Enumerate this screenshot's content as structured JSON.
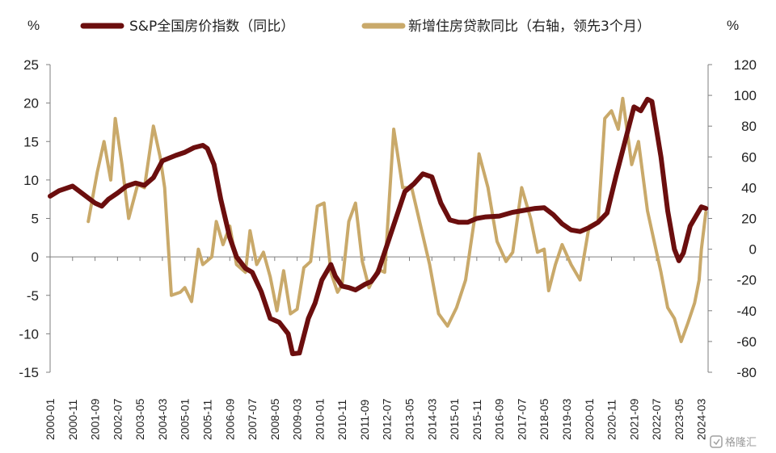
{
  "colors": {
    "series_1": "#6b0e0e",
    "series_2": "#c9a96a",
    "axis": "#7f7f7f"
  },
  "watermark": {
    "text": "格隆汇",
    "icon": "watermark-logo-icon"
  },
  "chart_data": {
    "type": "line",
    "left_axis_unit": "%",
    "right_axis_unit": "%",
    "ylim_left": [
      -15,
      25
    ],
    "ylim_right": [
      -80,
      120
    ],
    "yticks_left": [
      "25",
      "20",
      "15",
      "10",
      "5",
      "0",
      "-5",
      "-10",
      "-15"
    ],
    "yticks_right": [
      "120",
      "100",
      "80",
      "60",
      "40",
      "20",
      "0",
      "-20",
      "-40",
      "-60",
      "-80"
    ],
    "xlim": [
      "2000-01",
      "2024-06"
    ],
    "xticks": [
      "2000-01",
      "2000-11",
      "2001-09",
      "2002-07",
      "2003-05",
      "2004-03",
      "2005-01",
      "2005-11",
      "2006-09",
      "2007-07",
      "2008-05",
      "2009-03",
      "2010-01",
      "2010-11",
      "2011-09",
      "2012-07",
      "2013-05",
      "2014-03",
      "2015-01",
      "2015-11",
      "2016-09",
      "2017-07",
      "2018-05",
      "2019-03",
      "2020-01",
      "2020-11",
      "2021-09",
      "2022-07",
      "2023-05",
      "2024-03"
    ],
    "legend_position": "top",
    "grid": false,
    "series": [
      {
        "name": "S&P全国房价指数（同比）",
        "axis": "left",
        "points": [
          [
            "2000-01",
            7.9
          ],
          [
            "2000-05",
            8.6
          ],
          [
            "2000-11",
            9.2
          ],
          [
            "2001-04",
            8.1
          ],
          [
            "2001-09",
            7.0
          ],
          [
            "2001-12",
            6.6
          ],
          [
            "2002-03",
            7.5
          ],
          [
            "2002-07",
            8.3
          ],
          [
            "2002-11",
            9.2
          ],
          [
            "2003-03",
            9.6
          ],
          [
            "2003-07",
            9.3
          ],
          [
            "2003-11",
            10.3
          ],
          [
            "2004-03",
            12.5
          ],
          [
            "2004-09",
            13.2
          ],
          [
            "2005-01",
            13.6
          ],
          [
            "2005-05",
            14.2
          ],
          [
            "2005-09",
            14.5
          ],
          [
            "2005-11",
            14.1
          ],
          [
            "2006-02",
            12.0
          ],
          [
            "2006-05",
            7.5
          ],
          [
            "2006-09",
            2.5
          ],
          [
            "2006-12",
            0.0
          ],
          [
            "2007-04",
            -1.5
          ],
          [
            "2007-07",
            -2.0
          ],
          [
            "2007-11",
            -4.5
          ],
          [
            "2008-03",
            -8.0
          ],
          [
            "2008-07",
            -8.5
          ],
          [
            "2008-11",
            -10.0
          ],
          [
            "2009-01",
            -12.6
          ],
          [
            "2009-04",
            -12.5
          ],
          [
            "2009-08",
            -8.0
          ],
          [
            "2009-11",
            -6.0
          ],
          [
            "2010-02",
            -3.0
          ],
          [
            "2010-06",
            -1.0
          ],
          [
            "2010-08",
            -2.5
          ],
          [
            "2010-11",
            -3.8
          ],
          [
            "2011-02",
            -4.0
          ],
          [
            "2011-05",
            -4.3
          ],
          [
            "2011-09",
            -3.6
          ],
          [
            "2011-12",
            -3.2
          ],
          [
            "2012-03",
            -2.0
          ],
          [
            "2012-07",
            1.5
          ],
          [
            "2012-11",
            5.0
          ],
          [
            "2013-03",
            8.5
          ],
          [
            "2013-07",
            9.5
          ],
          [
            "2013-11",
            10.8
          ],
          [
            "2014-03",
            10.4
          ],
          [
            "2014-07",
            7.0
          ],
          [
            "2014-11",
            4.8
          ],
          [
            "2015-03",
            4.5
          ],
          [
            "2015-07",
            4.5
          ],
          [
            "2015-11",
            5.0
          ],
          [
            "2016-03",
            5.2
          ],
          [
            "2016-09",
            5.3
          ],
          [
            "2017-03",
            5.8
          ],
          [
            "2017-09",
            6.1
          ],
          [
            "2018-01",
            6.3
          ],
          [
            "2018-05",
            6.4
          ],
          [
            "2018-09",
            5.5
          ],
          [
            "2019-01",
            4.3
          ],
          [
            "2019-05",
            3.5
          ],
          [
            "2019-09",
            3.3
          ],
          [
            "2020-01",
            3.8
          ],
          [
            "2020-05",
            4.5
          ],
          [
            "2020-09",
            5.7
          ],
          [
            "2021-01",
            10.5
          ],
          [
            "2021-05",
            15.0
          ],
          [
            "2021-09",
            19.5
          ],
          [
            "2021-12",
            19.0
          ],
          [
            "2022-03",
            20.5
          ],
          [
            "2022-05",
            20.2
          ],
          [
            "2022-09",
            13.0
          ],
          [
            "2022-12",
            6.0
          ],
          [
            "2023-03",
            1.0
          ],
          [
            "2023-05",
            -0.5
          ],
          [
            "2023-07",
            0.5
          ],
          [
            "2023-10",
            4.0
          ],
          [
            "2024-01",
            5.5
          ],
          [
            "2024-03",
            6.5
          ],
          [
            "2024-05",
            6.3
          ]
        ]
      },
      {
        "name": "新增住房贷款同比（右轴，领先3个月）",
        "axis": "right",
        "points": [
          [
            "2001-06",
            18
          ],
          [
            "2001-10",
            50
          ],
          [
            "2002-01",
            70
          ],
          [
            "2002-04",
            45
          ],
          [
            "2002-06",
            85
          ],
          [
            "2002-09",
            55
          ],
          [
            "2002-12",
            20
          ],
          [
            "2003-04",
            42
          ],
          [
            "2003-07",
            40
          ],
          [
            "2003-11",
            80
          ],
          [
            "2004-02",
            60
          ],
          [
            "2004-04",
            40
          ],
          [
            "2004-07",
            -30
          ],
          [
            "2004-11",
            -28
          ],
          [
            "2005-01",
            -25
          ],
          [
            "2005-04",
            -34
          ],
          [
            "2005-07",
            0
          ],
          [
            "2005-09",
            -10
          ],
          [
            "2006-01",
            -5
          ],
          [
            "2006-03",
            18
          ],
          [
            "2006-06",
            3
          ],
          [
            "2006-09",
            15
          ],
          [
            "2006-12",
            -10
          ],
          [
            "2007-04",
            -15
          ],
          [
            "2007-06",
            12
          ],
          [
            "2007-09",
            -10
          ],
          [
            "2007-12",
            -2
          ],
          [
            "2008-03",
            -18
          ],
          [
            "2008-06",
            -40
          ],
          [
            "2008-09",
            -14
          ],
          [
            "2008-12",
            -42
          ],
          [
            "2009-03",
            -39
          ],
          [
            "2009-06",
            -12
          ],
          [
            "2009-09",
            -8
          ],
          [
            "2009-12",
            28
          ],
          [
            "2010-03",
            30
          ],
          [
            "2010-06",
            -15
          ],
          [
            "2010-09",
            -28
          ],
          [
            "2010-11",
            -23
          ],
          [
            "2011-02",
            18
          ],
          [
            "2011-05",
            30
          ],
          [
            "2011-08",
            -8
          ],
          [
            "2011-11",
            -25
          ],
          [
            "2012-03",
            -13
          ],
          [
            "2012-06",
            -15
          ],
          [
            "2012-10",
            78
          ],
          [
            "2013-02",
            40
          ],
          [
            "2013-06",
            40
          ],
          [
            "2013-10",
            15
          ],
          [
            "2014-02",
            -10
          ],
          [
            "2014-06",
            -42
          ],
          [
            "2014-10",
            -50
          ],
          [
            "2015-02",
            -38
          ],
          [
            "2015-06",
            -20
          ],
          [
            "2015-10",
            20
          ],
          [
            "2015-12",
            62
          ],
          [
            "2016-04",
            40
          ],
          [
            "2016-08",
            5
          ],
          [
            "2016-12",
            -8
          ],
          [
            "2017-03",
            -2
          ],
          [
            "2017-07",
            40
          ],
          [
            "2017-11",
            20
          ],
          [
            "2018-02",
            -2
          ],
          [
            "2018-05",
            0
          ],
          [
            "2018-07",
            -27
          ],
          [
            "2018-10",
            -10
          ],
          [
            "2019-01",
            3
          ],
          [
            "2019-05",
            -10
          ],
          [
            "2019-09",
            -20
          ],
          [
            "2020-01",
            15
          ],
          [
            "2020-05",
            18
          ],
          [
            "2020-08",
            85
          ],
          [
            "2020-11",
            90
          ],
          [
            "2021-02",
            78
          ],
          [
            "2021-04",
            98
          ],
          [
            "2021-08",
            55
          ],
          [
            "2021-11",
            70
          ],
          [
            "2022-03",
            25
          ],
          [
            "2022-06",
            5
          ],
          [
            "2022-09",
            -15
          ],
          [
            "2022-12",
            -38
          ],
          [
            "2023-03",
            -45
          ],
          [
            "2023-06",
            -60
          ],
          [
            "2023-09",
            -48
          ],
          [
            "2023-12",
            -35
          ],
          [
            "2024-02",
            -20
          ],
          [
            "2024-03",
            0
          ],
          [
            "2024-05",
            24
          ]
        ]
      }
    ]
  }
}
